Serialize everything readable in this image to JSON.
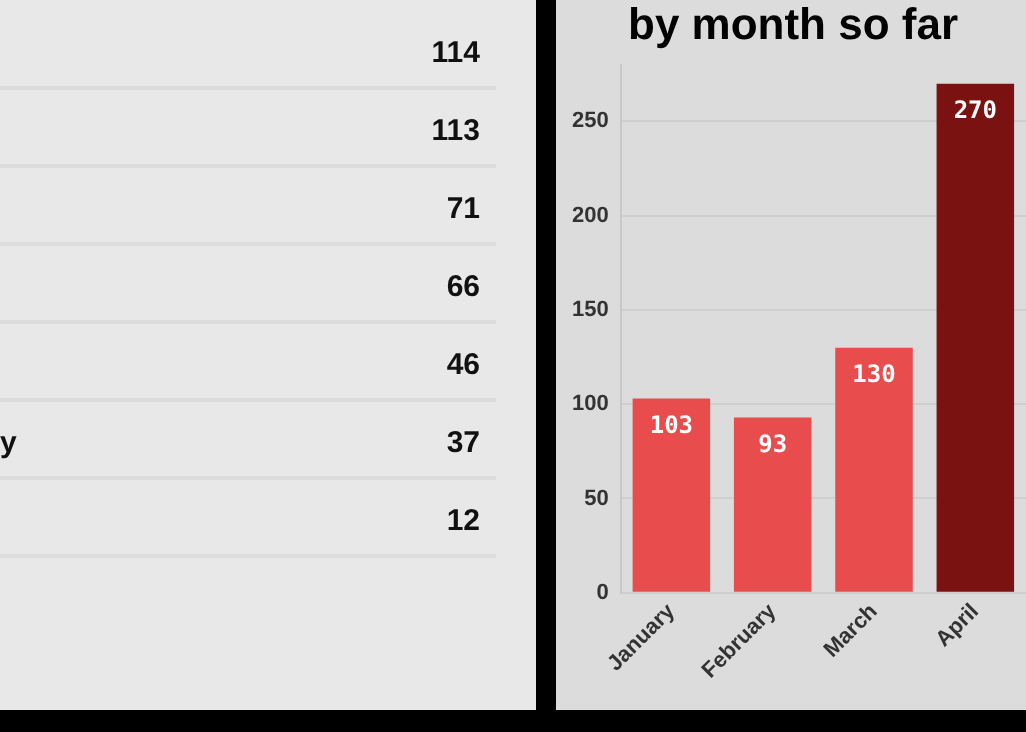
{
  "chart_data": [
    {
      "type": "other",
      "categories": [
        null,
        null,
        null,
        null,
        null,
        "y",
        null
      ],
      "values": [
        114,
        113,
        71,
        66,
        46,
        37,
        12
      ],
      "data_labels": true
    },
    {
      "type": "bar",
      "title": "by month so far",
      "categories": [
        "January",
        "February",
        "March",
        "April"
      ],
      "values": [
        103,
        93,
        130,
        270
      ],
      "colors": [
        "#e84c4c",
        "#e84c4c",
        "#e84c4c",
        "#7a1212"
      ],
      "ylim": [
        0,
        280
      ],
      "yticks": [
        0,
        50,
        100,
        150,
        200,
        250
      ],
      "grid": "y",
      "data_labels": true
    }
  ]
}
